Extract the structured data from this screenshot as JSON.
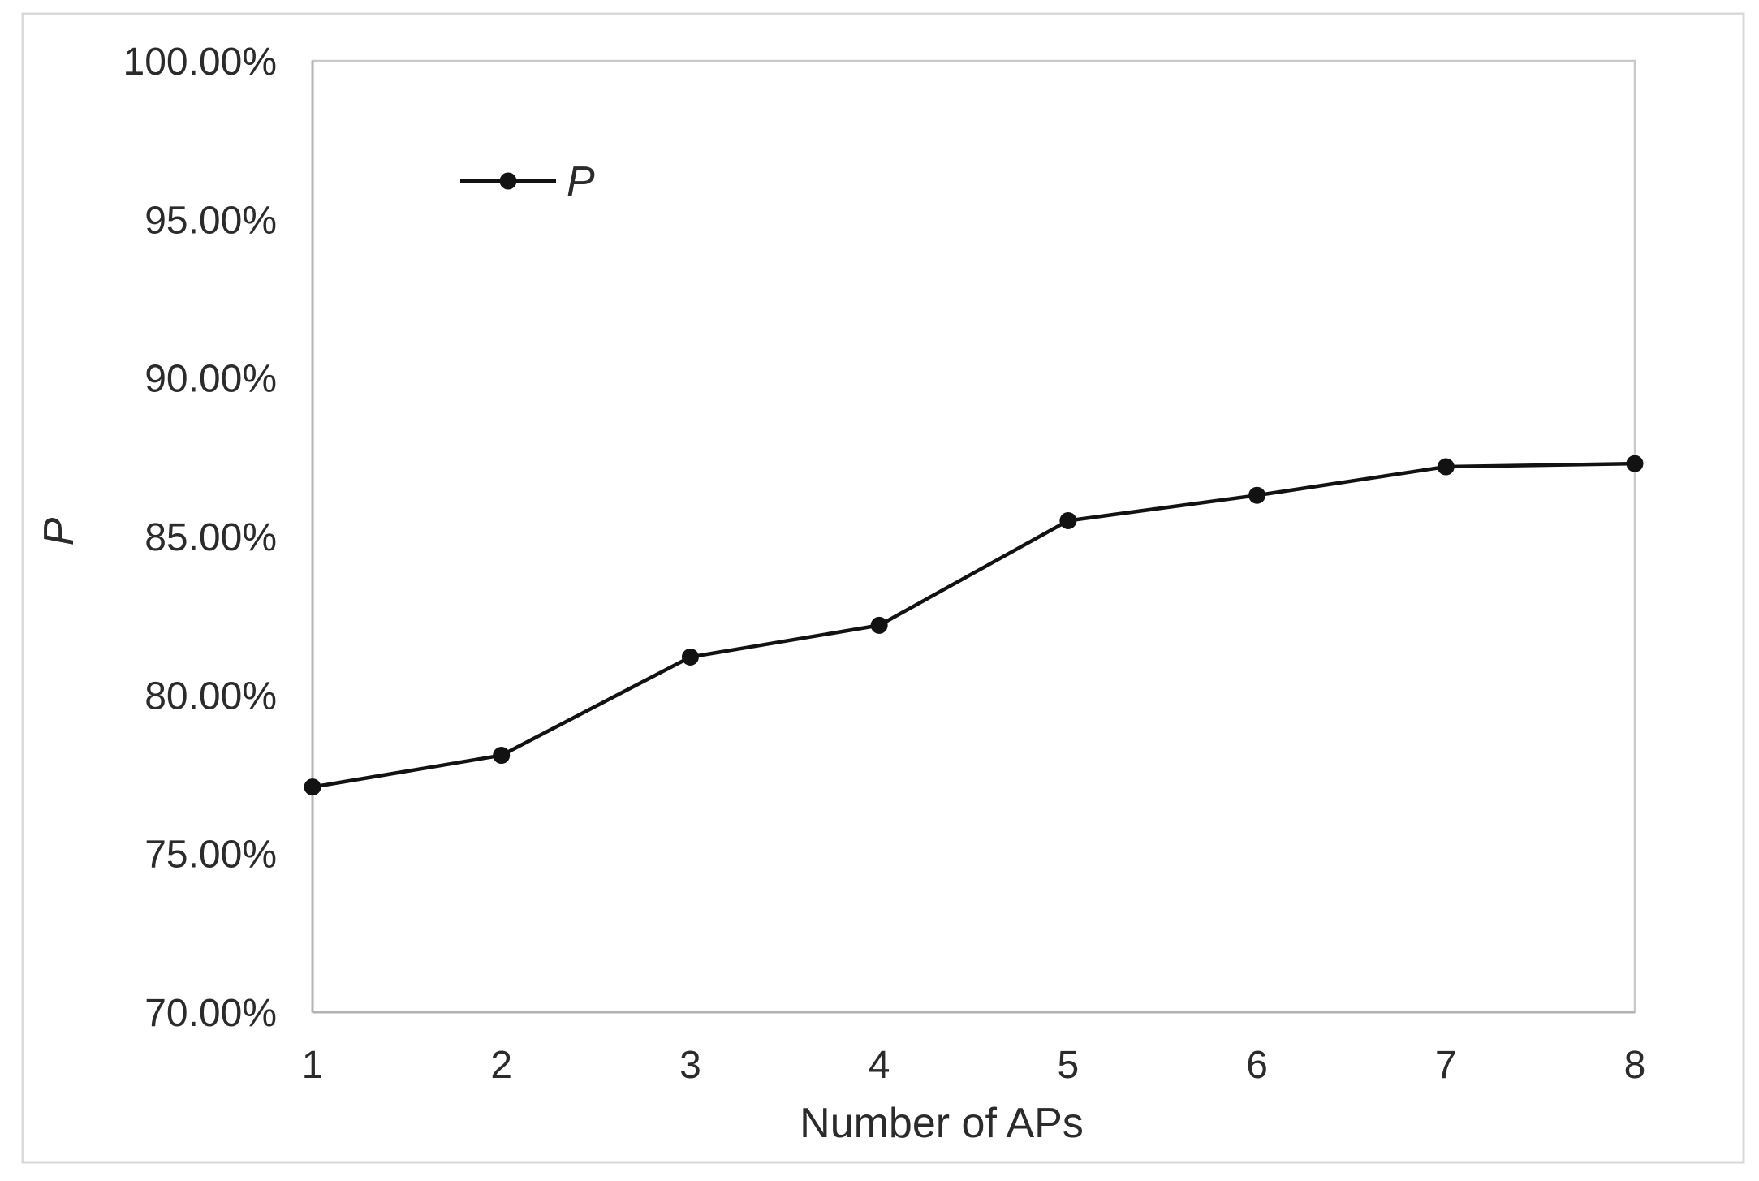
{
  "chart_data": {
    "type": "line",
    "title": "",
    "xlabel": "Number of APs",
    "ylabel": "P",
    "x": [
      1,
      2,
      3,
      4,
      5,
      6,
      7,
      8
    ],
    "xtick_labels": [
      "1",
      "2",
      "3",
      "4",
      "5",
      "6",
      "7",
      "8"
    ],
    "series": [
      {
        "name": "P",
        "values": [
          77.1,
          78.1,
          81.2,
          82.2,
          85.5,
          86.3,
          87.2,
          87.3
        ]
      }
    ],
    "ylim": [
      70,
      100
    ],
    "ytick_step": 5,
    "ytick_labels": [
      "70.00%",
      "75.00%",
      "80.00%",
      "85.00%",
      "90.00%",
      "95.00%",
      "100.00%"
    ],
    "grid": false,
    "legend_position": "inside-top-left",
    "legend_label": "P",
    "colors": {
      "line": "#121212",
      "marker": "#121212",
      "axis_line": "#b3b3b3",
      "plot_border": "#c9c9c9",
      "figure_border": "#d9d9d9",
      "text": "#2b2b2b",
      "background": "#ffffff"
    }
  }
}
